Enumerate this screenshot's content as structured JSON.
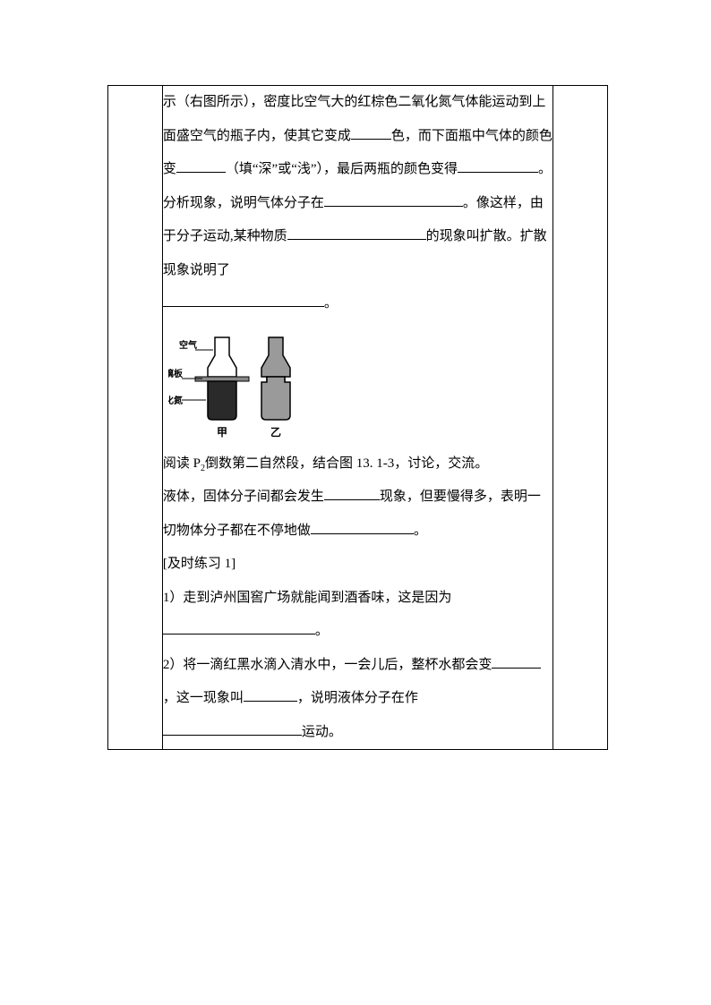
{
  "para1": {
    "t1": "示（右图所示），密度比空气大的红棕色二氧化氮气体能运动到上面盛空气的瓶子内，使其它变成",
    "t2": "色，而下面瓶中气体的颜色变",
    "t3": "（填“深”或“浅”），最后两瓶的颜色变得",
    "t4": "。分析现象，说明气体分子在",
    "t5": "。像这样，由于分子运动,某种物质",
    "t6": "的现象叫扩散。扩散现象说明了",
    "t7": "。"
  },
  "diagram": {
    "label_air": "空气",
    "label_glass": "玻璃板",
    "label_no2": "二氧化氮",
    "label_a": "甲",
    "label_b": "乙"
  },
  "para2": {
    "t1": "阅读 P",
    "sub": "2",
    "t2": "倒数第二自然段，结合图 13. 1-3，讨论，交流。"
  },
  "para3": {
    "t1": "液体，固体分子间都会发生",
    "t2": "现象，但要慢得多，表明一切物体分子都在不停地做",
    "t3": "。"
  },
  "ex": {
    "heading": "[及时练习 1]",
    "q1a": "1）走到泸州国窖广场就能闻到酒香味，这是因为",
    "q1b": "。",
    "q2a": "2）将一滴红黑水滴入清水中，一会儿后，整杯水都会变",
    "q2b": "，这一现象叫",
    "q2c": "，说明液体分子在作",
    "q2d": "运动。"
  },
  "blanks": {
    "b1": 45,
    "b2": 55,
    "b3": 90,
    "b4": 155,
    "b5": 155,
    "b6": 180,
    "b7": 62,
    "b8": 115,
    "b9": 170,
    "b10": 55,
    "b11": 60,
    "b12": 155
  },
  "style": {
    "font_size": 15,
    "line_height": 2.5,
    "text_color": "#000000",
    "border_color": "#000000",
    "background": "#ffffff"
  }
}
